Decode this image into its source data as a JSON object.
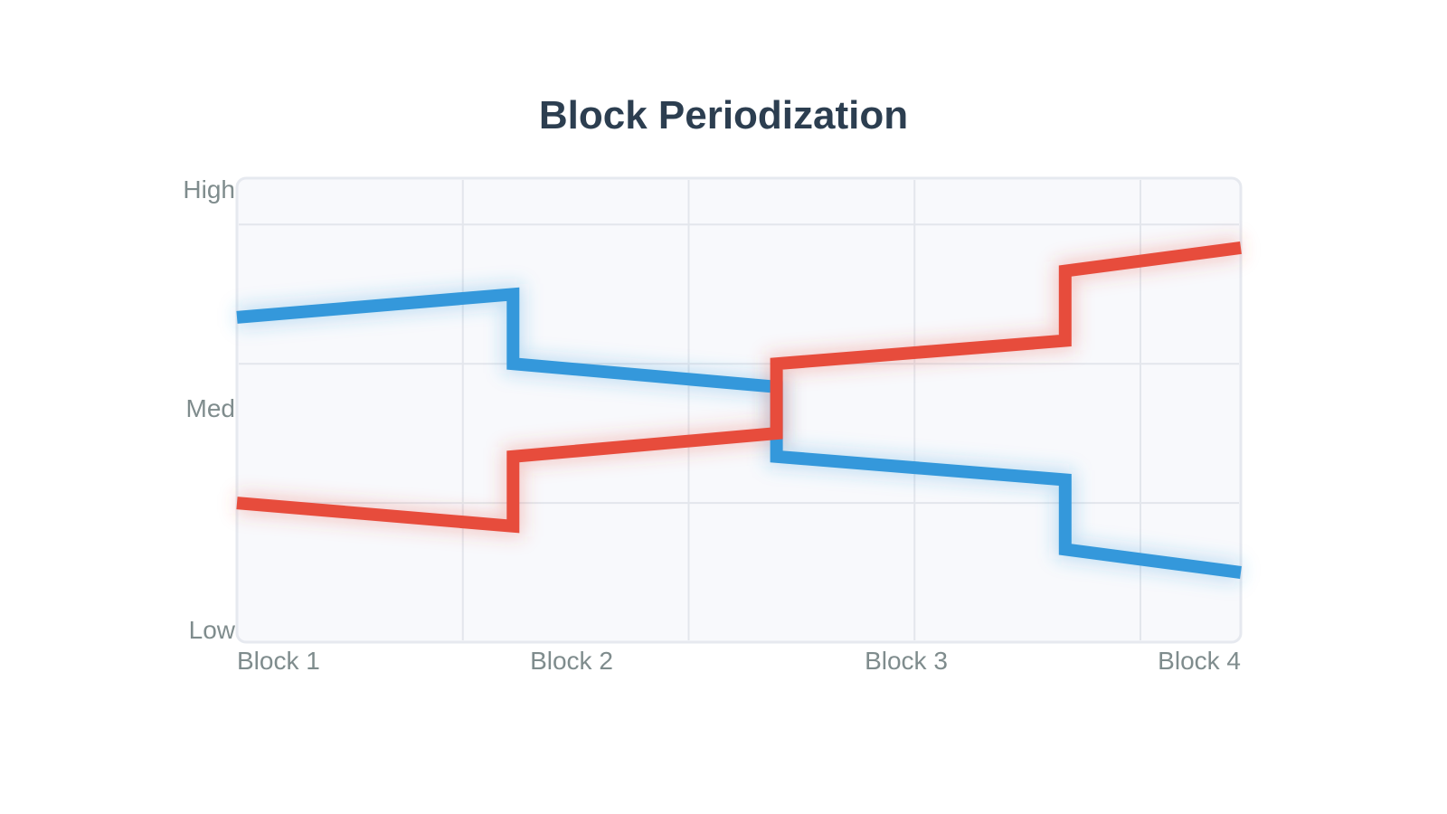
{
  "chart_data": {
    "type": "line",
    "title": "Block Periodization",
    "xlabel": "",
    "ylabel": "",
    "x_ticks": [
      "Block 1",
      "Block 2",
      "Block 3",
      "Block 4"
    ],
    "y_ticks": [
      "Low",
      "Med",
      "High"
    ],
    "xlim": [
      0,
      4
    ],
    "ylim": [
      0,
      100
    ],
    "grid": true,
    "legend": "none",
    "series": [
      {
        "color": "#3498db",
        "points": [
          {
            "x": 0,
            "y": 70
          },
          {
            "x": 1.1,
            "y": 75
          },
          {
            "x": 1.1,
            "y": 60
          },
          {
            "x": 2.15,
            "y": 55
          },
          {
            "x": 2.15,
            "y": 40
          },
          {
            "x": 3.3,
            "y": 35
          },
          {
            "x": 3.3,
            "y": 20
          },
          {
            "x": 4,
            "y": 15
          }
        ]
      },
      {
        "color": "#e74c3c",
        "points": [
          {
            "x": 0,
            "y": 30
          },
          {
            "x": 1.1,
            "y": 25
          },
          {
            "x": 1.1,
            "y": 40
          },
          {
            "x": 2.15,
            "y": 45
          },
          {
            "x": 2.15,
            "y": 60
          },
          {
            "x": 3.3,
            "y": 65
          },
          {
            "x": 3.3,
            "y": 80
          },
          {
            "x": 4,
            "y": 85
          }
        ]
      }
    ]
  }
}
